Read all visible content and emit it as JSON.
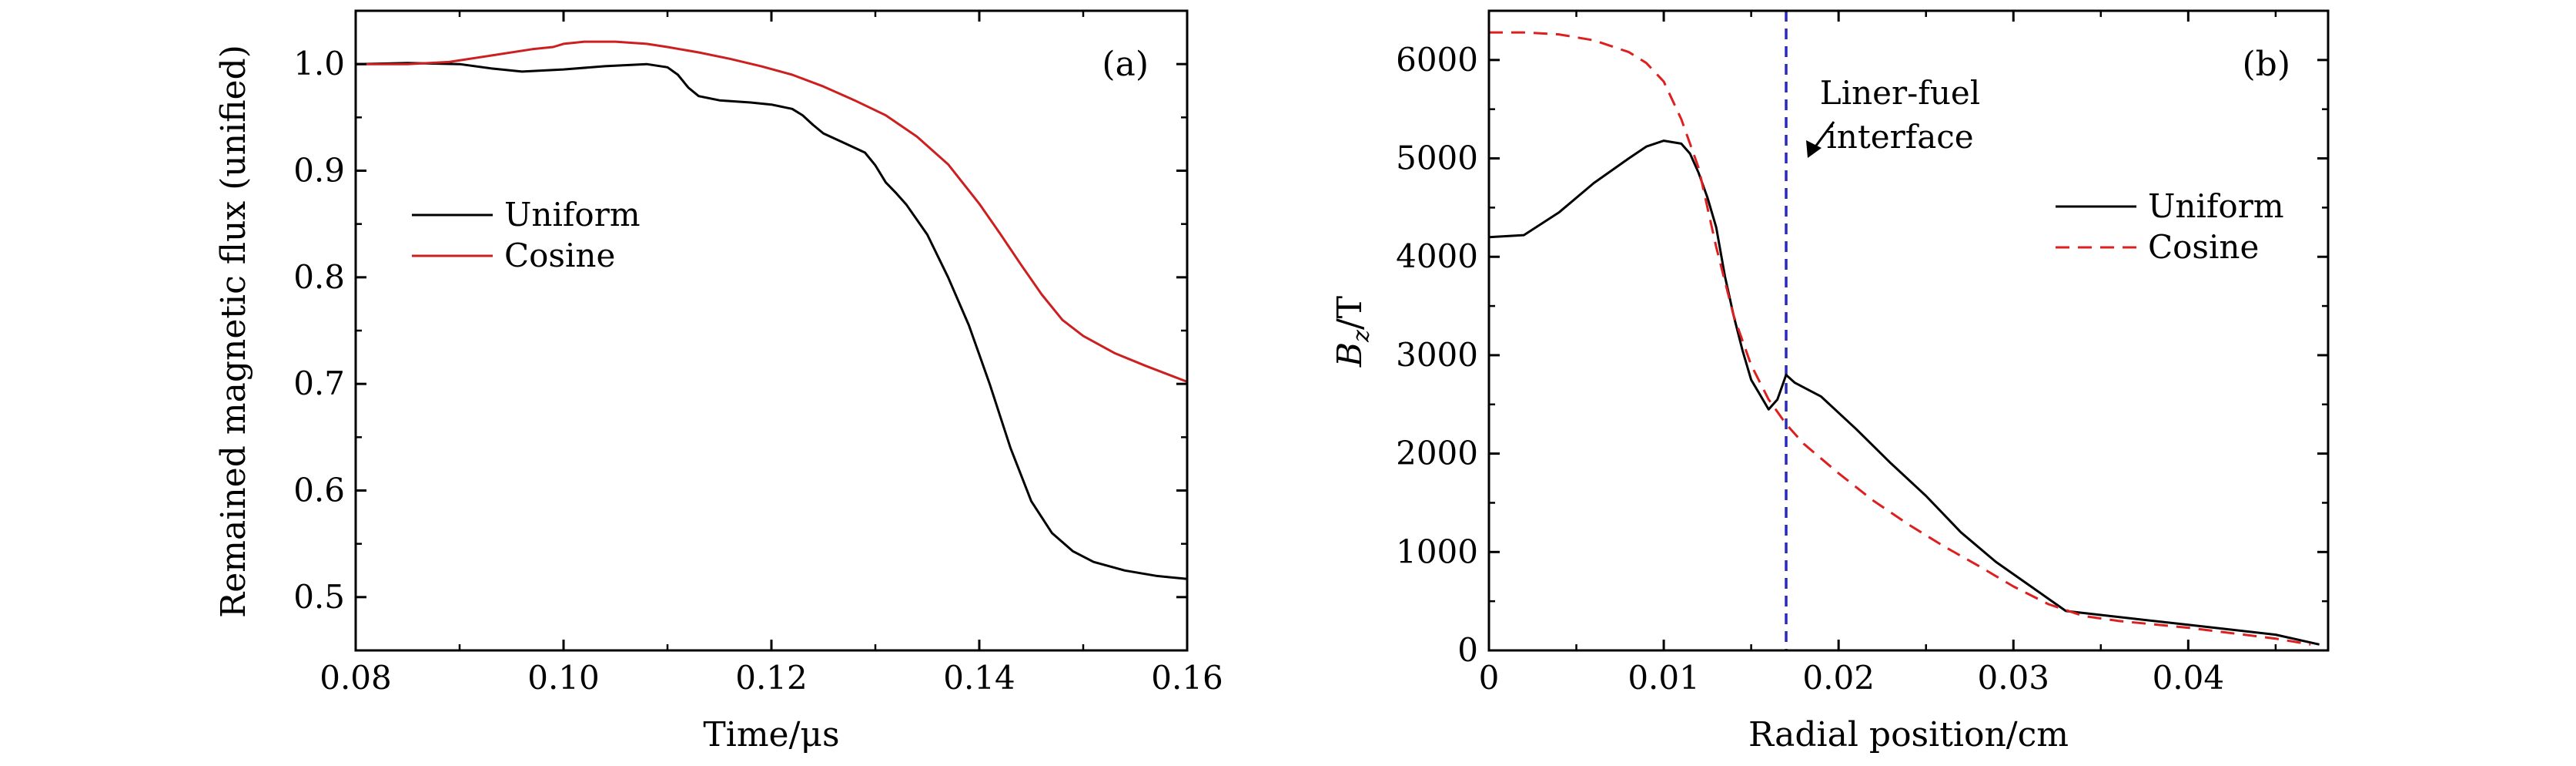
{
  "chart_data": [
    {
      "type": "line",
      "panel_label": "(a)",
      "xlabel": "Time/μs",
      "ylabel": "Remained magnetic flux (unified)",
      "xlim": [
        0.08,
        0.16
      ],
      "ylim": [
        0.45,
        1.05
      ],
      "xticks": [
        0.08,
        0.1,
        0.12,
        0.14,
        0.16
      ],
      "xtick_labels": [
        "0.08",
        "0.10",
        "0.12",
        "0.14",
        "0.16"
      ],
      "yticks": [
        0.5,
        0.6,
        0.7,
        0.8,
        0.9,
        1.0
      ],
      "ytick_labels": [
        "0.5",
        "0.6",
        "0.7",
        "0.8",
        "0.9",
        "1.0"
      ],
      "legend_position": "left-middle",
      "series": [
        {
          "name": "Uniform",
          "color": "#000000",
          "dash": "solid",
          "x": [
            0.08,
            0.085,
            0.09,
            0.093,
            0.096,
            0.1,
            0.104,
            0.108,
            0.11,
            0.111,
            0.112,
            0.113,
            0.115,
            0.118,
            0.12,
            0.122,
            0.123,
            0.124,
            0.125,
            0.127,
            0.129,
            0.13,
            0.131,
            0.132,
            0.133,
            0.135,
            0.137,
            0.139,
            0.141,
            0.143,
            0.145,
            0.147,
            0.149,
            0.151,
            0.154,
            0.157,
            0.16
          ],
          "y": [
            1.0,
            1.001,
            1.0,
            0.996,
            0.993,
            0.995,
            0.998,
            1.0,
            0.997,
            0.99,
            0.978,
            0.97,
            0.966,
            0.964,
            0.962,
            0.958,
            0.952,
            0.943,
            0.935,
            0.926,
            0.917,
            0.905,
            0.889,
            0.879,
            0.868,
            0.84,
            0.8,
            0.755,
            0.7,
            0.64,
            0.59,
            0.56,
            0.543,
            0.533,
            0.525,
            0.52,
            0.517
          ]
        },
        {
          "name": "Cosine",
          "color": "#cc1f1f",
          "dash": "solid",
          "x": [
            0.08,
            0.085,
            0.089,
            0.093,
            0.097,
            0.099,
            0.1,
            0.102,
            0.105,
            0.108,
            0.11,
            0.113,
            0.116,
            0.119,
            0.122,
            0.125,
            0.128,
            0.131,
            0.134,
            0.137,
            0.14,
            0.142,
            0.144,
            0.146,
            0.148,
            0.15,
            0.153,
            0.156,
            0.16
          ],
          "y": [
            1.0,
            1.0,
            1.002,
            1.008,
            1.014,
            1.016,
            1.019,
            1.021,
            1.021,
            1.019,
            1.016,
            1.011,
            1.005,
            0.998,
            0.99,
            0.979,
            0.966,
            0.952,
            0.932,
            0.906,
            0.869,
            0.841,
            0.812,
            0.784,
            0.76,
            0.745,
            0.729,
            0.717,
            0.702
          ]
        }
      ]
    },
    {
      "type": "line",
      "panel_label": "(b)",
      "xlabel": "Radial position/cm",
      "ylabel": "Bz/T",
      "xlim": [
        0,
        0.048
      ],
      "ylim": [
        0,
        6500
      ],
      "xticks": [
        0,
        0.01,
        0.02,
        0.03,
        0.04
      ],
      "xtick_labels": [
        "0",
        "0.01",
        "0.02",
        "0.03",
        "0.04"
      ],
      "yticks": [
        0,
        1000,
        2000,
        3000,
        4000,
        5000,
        6000
      ],
      "ytick_labels": [
        "0",
        "1000",
        "2000",
        "3000",
        "4000",
        "5000",
        "6000"
      ],
      "legend_position": "right-middle",
      "annotation": {
        "text": [
          "Liner-fuel",
          "interface"
        ],
        "x": 0.017,
        "y": 5000
      },
      "interface_x": 0.017,
      "interface_color": "#2a2ab8",
      "series": [
        {
          "name": "Uniform",
          "color": "#000000",
          "dash": "solid",
          "x": [
            0.0,
            0.002,
            0.004,
            0.006,
            0.008,
            0.009,
            0.01,
            0.011,
            0.0115,
            0.012,
            0.0125,
            0.013,
            0.0135,
            0.014,
            0.0145,
            0.015,
            0.0155,
            0.016,
            0.0165,
            0.017,
            0.0175,
            0.019,
            0.021,
            0.023,
            0.025,
            0.027,
            0.029,
            0.031,
            0.033,
            0.04,
            0.045,
            0.0475
          ],
          "y": [
            4200,
            4220,
            4450,
            4750,
            5000,
            5120,
            5180,
            5150,
            5050,
            4850,
            4600,
            4300,
            3800,
            3400,
            3050,
            2750,
            2600,
            2450,
            2550,
            2800,
            2720,
            2580,
            2250,
            1900,
            1570,
            1200,
            900,
            650,
            400,
            260,
            160,
            60
          ]
        },
        {
          "name": "Cosine",
          "color": "#dd1f1f",
          "dash": "dashed",
          "x": [
            0.0,
            0.002,
            0.004,
            0.006,
            0.008,
            0.009,
            0.01,
            0.011,
            0.012,
            0.013,
            0.014,
            0.015,
            0.016,
            0.017,
            0.018,
            0.02,
            0.022,
            0.024,
            0.026,
            0.028,
            0.03,
            0.032,
            0.034,
            0.036,
            0.04,
            0.045,
            0.047
          ],
          "y": [
            6280,
            6280,
            6260,
            6200,
            6080,
            5970,
            5780,
            5400,
            4900,
            4100,
            3400,
            2900,
            2550,
            2300,
            2100,
            1800,
            1520,
            1280,
            1060,
            860,
            650,
            470,
            350,
            300,
            230,
            120,
            60
          ]
        }
      ]
    }
  ]
}
